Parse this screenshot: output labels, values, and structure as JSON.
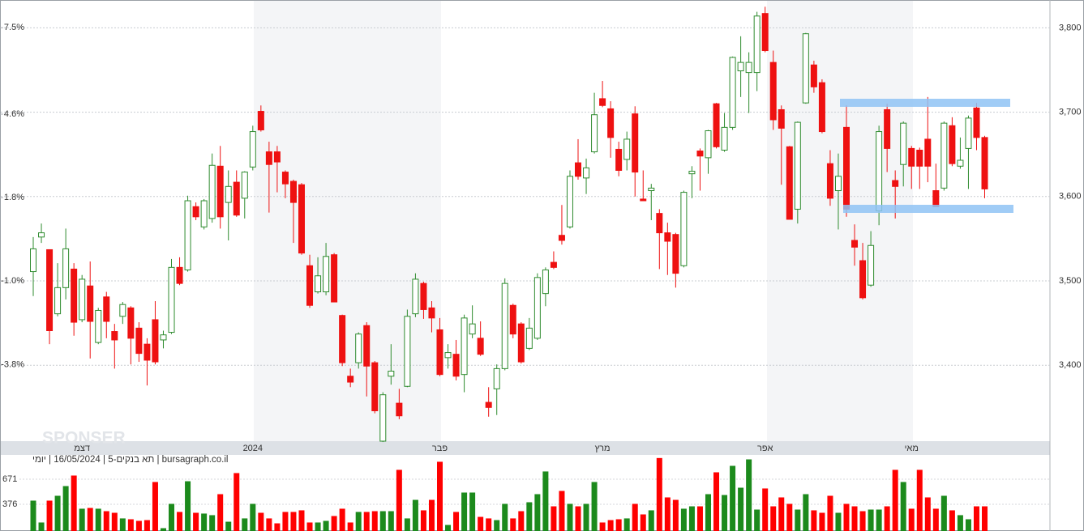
{
  "chart_data": [
    {
      "type": "candlestick",
      "categories": [
        null,
        null,
        null,
        null,
        null,
        null,
        "דצמ",
        null,
        null,
        null,
        null,
        null,
        null,
        null,
        null,
        null,
        null,
        null,
        null,
        null,
        null,
        null,
        null,
        null,
        null,
        null,
        null,
        "2024",
        null,
        null,
        null,
        null,
        null,
        null,
        null,
        null,
        null,
        null,
        null,
        null,
        null,
        null,
        null,
        null,
        null,
        null,
        null,
        null,
        null,
        null,
        "פבר",
        null,
        null,
        null,
        null,
        null,
        null,
        null,
        null,
        null,
        null,
        null,
        null,
        null,
        null,
        null,
        null,
        null,
        null,
        null,
        "מרץ",
        null,
        null,
        null,
        null,
        null,
        null,
        null,
        null,
        null,
        null,
        null,
        null,
        null,
        null,
        null,
        null,
        null,
        null,
        null,
        "אפר",
        null,
        null,
        null,
        null,
        null,
        null,
        null,
        null,
        null,
        null,
        null,
        null,
        null,
        null,
        null,
        null,
        null,
        "מאי",
        null,
        null,
        null,
        null,
        null,
        null,
        null,
        null,
        null
      ],
      "open": [
        3511,
        3552,
        3537,
        3461,
        3492,
        3514,
        3454,
        3494,
        3427,
        3481,
        3440,
        3458,
        3468,
        3444,
        3425,
        3454,
        3430,
        3439,
        3516,
        3513,
        3588,
        3564,
        3574,
        3636,
        3593,
        3617,
        3598,
        3635,
        3701,
        3653,
        3653,
        3629,
        3618,
        3614,
        3518,
        3487,
        3487,
        3531,
        3459,
        3387,
        3403,
        3447,
        3403,
        3310,
        3387,
        3355,
        3375,
        3461,
        3497,
        3468,
        3442,
        3409,
        3413,
        3389,
        3437,
        3432,
        3356,
        3372,
        3396,
        3471,
        3449,
        3420,
        3432,
        3485,
        3522,
        3554,
        3564,
        3640,
        3622,
        3653,
        3716,
        3704,
        3656,
        3644,
        3698,
        3597,
        3607,
        3580,
        3557,
        3555,
        3518,
        3627,
        3654,
        3646,
        3710,
        3655,
        3682,
        3749,
        3747,
        3747,
        3817,
        3759,
        3703,
        3659,
        3585,
        3711,
        3756,
        3735,
        3639,
        3607,
        3682,
        3548,
        3524,
        3495,
        3583,
        3703,
        3619,
        3638,
        3657,
        3655,
        3668,
        3607,
        3610,
        3684,
        3636,
        3657,
        3705,
        3670
      ],
      "high": [
        3552,
        3568,
        3537,
        3521,
        3562,
        3521,
        3507,
        3523,
        3468,
        3487,
        3449,
        3475,
        3470,
        3451,
        3432,
        3476,
        3441,
        3526,
        3528,
        3601,
        3593,
        3597,
        3651,
        3660,
        3631,
        3631,
        3630,
        3684,
        3708,
        3665,
        3660,
        3631,
        3620,
        3616,
        3531,
        3528,
        3545,
        3533,
        3460,
        3396,
        3439,
        3451,
        3405,
        3368,
        3425,
        3372,
        3466,
        3509,
        3499,
        3476,
        3456,
        3425,
        3430,
        3460,
        3471,
        3452,
        3374,
        3401,
        3503,
        3473,
        3451,
        3456,
        3509,
        3516,
        3535,
        3590,
        3631,
        3668,
        3645,
        3723,
        3737,
        3713,
        3665,
        3677,
        3707,
        3631,
        3615,
        3585,
        3569,
        3557,
        3607,
        3636,
        3657,
        3679,
        3711,
        3699,
        3766,
        3790,
        3771,
        3819,
        3825,
        3773,
        3708,
        3660,
        3689,
        3794,
        3761,
        3739,
        3655,
        3651,
        3708,
        3567,
        3545,
        3559,
        3684,
        3710,
        3631,
        3689,
        3660,
        3658,
        3718,
        3639,
        3689,
        3694,
        3670,
        3696,
        3711,
        3672
      ],
      "low": [
        3482,
        3545,
        3425,
        3458,
        3478,
        3435,
        3451,
        3408,
        3425,
        3432,
        3396,
        3449,
        3401,
        3404,
        3376,
        3401,
        3420,
        3437,
        3495,
        3511,
        3572,
        3561,
        3569,
        3562,
        3548,
        3576,
        3574,
        3631,
        3677,
        3581,
        3605,
        3598,
        3545,
        3531,
        3468,
        3485,
        3483,
        3475,
        3399,
        3374,
        3396,
        3363,
        3343,
        3309,
        3377,
        3336,
        3374,
        3457,
        3455,
        3439,
        3387,
        3396,
        3382,
        3368,
        3432,
        3411,
        3339,
        3341,
        3394,
        3432,
        3402,
        3418,
        3430,
        3470,
        3514,
        3543,
        3562,
        3620,
        3603,
        3651,
        3706,
        3646,
        3624,
        3631,
        3600,
        3595,
        3572,
        3514,
        3507,
        3492,
        3516,
        3598,
        3607,
        3627,
        3657,
        3653,
        3679,
        3718,
        3699,
        3725,
        3771,
        3679,
        3614,
        3573,
        3568,
        3710,
        3723,
        3675,
        3589,
        3561,
        3576,
        3518,
        3478,
        3493,
        3566,
        3629,
        3574,
        3612,
        3609,
        3609,
        3617,
        3588,
        3607,
        3636,
        3633,
        3609,
        3655,
        3598
      ],
      "close": [
        3538,
        3557,
        3441,
        3492,
        3538,
        3451,
        3502,
        3452,
        3465,
        3452,
        3430,
        3472,
        3432,
        3414,
        3406,
        3404,
        3436,
        3516,
        3497,
        3595,
        3576,
        3595,
        3637,
        3576,
        3612,
        3578,
        3629,
        3677,
        3679,
        3638,
        3641,
        3615,
        3593,
        3533,
        3471,
        3506,
        3529,
        3475,
        3403,
        3380,
        3437,
        3399,
        3346,
        3365,
        3393,
        3340,
        3458,
        3502,
        3466,
        3456,
        3389,
        3415,
        3387,
        3456,
        3449,
        3413,
        3350,
        3396,
        3497,
        3437,
        3404,
        3444,
        3504,
        3513,
        3516,
        3548,
        3624,
        3624,
        3634,
        3697,
        3708,
        3670,
        3631,
        3668,
        3629,
        3595,
        3610,
        3557,
        3547,
        3509,
        3605,
        3630,
        3648,
        3678,
        3659,
        3682,
        3765,
        3759,
        3759,
        3814,
        3773,
        3691,
        3681,
        3573,
        3688,
        3793,
        3730,
        3677,
        3598,
        3624,
        3585,
        3540,
        3480,
        3542,
        3677,
        3657,
        3612,
        3687,
        3636,
        3636,
        3636,
        3588,
        3687,
        3639,
        3643,
        3693,
        3670,
        3609
      ],
      "up_color": "#2e8b2e",
      "down_color": "#ee1111",
      "ylim": [
        3310,
        3833
      ],
      "yticks": [
        {
          "value": 3800,
          "label": "3,800"
        },
        {
          "value": 3700,
          "label": "3,700"
        },
        {
          "value": 3600,
          "label": "3,600"
        },
        {
          "value": 3500,
          "label": "3,500"
        },
        {
          "value": 3400,
          "label": "3,400"
        }
      ],
      "y2lim": [
        -6.37,
        8.43
      ],
      "y2ticks": [
        {
          "value": 7.5,
          "label": "7.5%"
        },
        {
          "value": 4.6,
          "label": "4.6%"
        },
        {
          "value": 1.8,
          "label": "1.8%"
        },
        {
          "value": -1.0,
          "label": "-1.0%"
        },
        {
          "value": -3.8,
          "label": "-3.8%"
        }
      ],
      "grid": true,
      "watermark": "SPONSER"
    },
    {
      "type": "bar",
      "title": "bursagraph.co.il | תא בנקים-5 | 16/05/2024 | יומי",
      "values": [
        419,
        162,
        419,
        476,
        590,
        714,
        324,
        333,
        324,
        295,
        276,
        210,
        200,
        181,
        190,
        638,
        95,
        381,
        286,
        647,
        276,
        267,
        248,
        495,
        171,
        743,
        210,
        381,
        276,
        210,
        152,
        286,
        286,
        305,
        162,
        162,
        181,
        238,
        324,
        162,
        286,
        286,
        295,
        295,
        295,
        781,
        210,
        428,
        305,
        428,
        876,
        133,
        286,
        514,
        514,
        228,
        210,
        190,
        381,
        210,
        295,
        400,
        495,
        762,
        352,
        533,
        381,
        352,
        381,
        638,
        162,
        190,
        200,
        210,
        381,
        257,
        305,
        920,
        457,
        428,
        324,
        352,
        352,
        495,
        752,
        485,
        828,
        571,
        904,
        314,
        562,
        352,
        457,
        381,
        314,
        495,
        305,
        276,
        476,
        276,
        381,
        352,
        295,
        314,
        314,
        352,
        781,
        638,
        324,
        781,
        457,
        324,
        476,
        305,
        248,
        200,
        352,
        352
      ],
      "ylim": [
        0,
        928
      ],
      "yticks": [
        671,
        376
      ],
      "up_color": "#1c8a1c",
      "down_color": "#ff0000"
    }
  ]
}
